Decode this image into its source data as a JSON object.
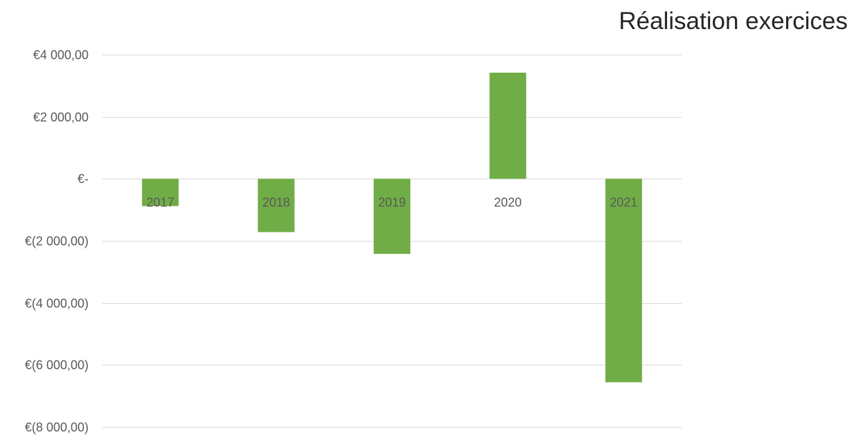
{
  "chart_data": {
    "type": "bar",
    "title": "Réalisation exercices",
    "xlabel": "",
    "ylabel": "",
    "categories": [
      "2017",
      "2018",
      "2019",
      "2020",
      "2021"
    ],
    "values": [
      -880,
      -1720,
      -2420,
      3420,
      -6560
    ],
    "ylim": [
      -8000,
      4000
    ],
    "yticks": [
      {
        "value": 4000,
        "label": "€4 000,00"
      },
      {
        "value": 2000,
        "label": "€2 000,00"
      },
      {
        "value": 0,
        "label": "€-"
      },
      {
        "value": -2000,
        "label": "€(2 000,00)"
      },
      {
        "value": -4000,
        "label": "€(4 000,00)"
      },
      {
        "value": -6000,
        "label": "€(6 000,00)"
      },
      {
        "value": -8000,
        "label": "€(8 000,00)"
      }
    ],
    "grid": true,
    "legend": "none",
    "bar_color": "#70AD47"
  }
}
